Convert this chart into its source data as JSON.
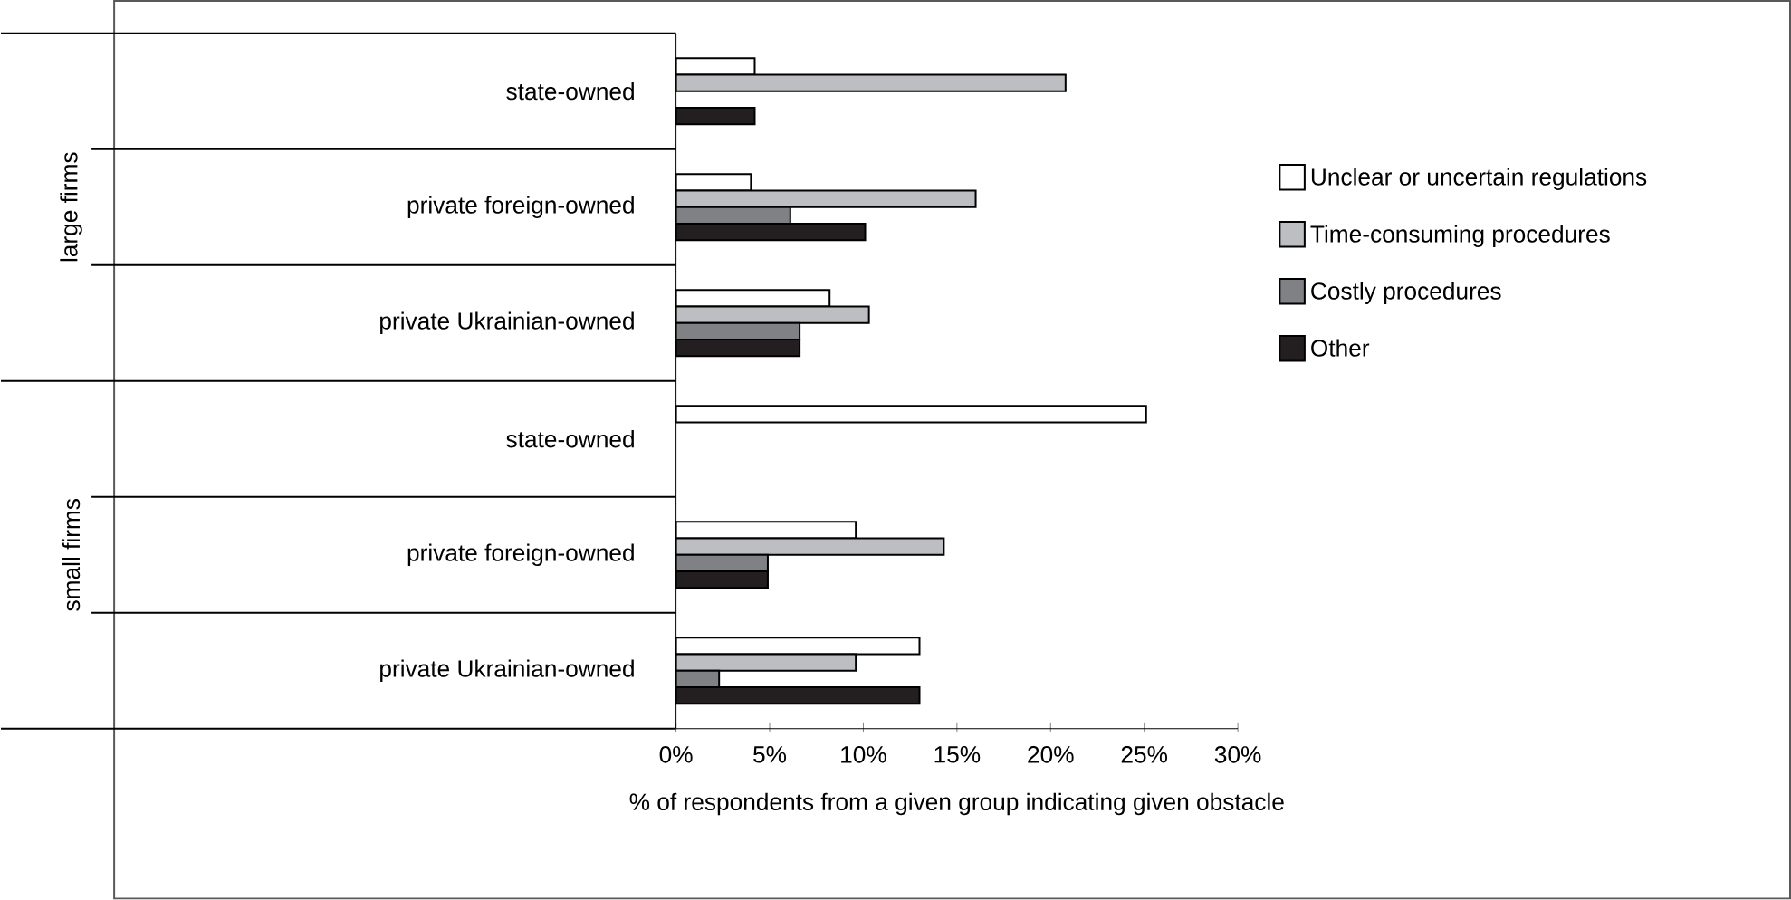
{
  "chart_data": {
    "type": "bar",
    "orientation": "horizontal",
    "xlabel": "% of respondents from a given group indicating given obstacle",
    "categories": [
      "state-owned",
      "private foreign-owned",
      "private Ukrainian-owned",
      "state-owned",
      "private foreign-owned",
      "private Ukrainian-owned"
    ],
    "annotations": [
      "large firms",
      "small firms"
    ],
    "series": [
      {
        "name": "Unclear or uncertain regulations",
        "color": "#ffffff",
        "values": [
          4.2,
          4.0,
          8.2,
          25.1,
          9.6,
          13.0
        ]
      },
      {
        "name": "Time-consuming procedures",
        "color": "#bdbec2",
        "values": [
          20.8,
          16.0,
          10.3,
          null,
          14.3,
          9.6
        ]
      },
      {
        "name": "Costly procedures",
        "color": "#808185",
        "values": [
          null,
          6.1,
          6.6,
          null,
          4.9,
          2.3
        ]
      },
      {
        "name": "Other",
        "color": "#231f20",
        "values": [
          4.2,
          10.1,
          6.6,
          null,
          4.9,
          13.0
        ]
      }
    ],
    "xlim": [
      0,
      30
    ],
    "xticks": [
      {
        "value": 0,
        "label": "0%"
      },
      {
        "value": 5,
        "label": "5%"
      },
      {
        "value": 10,
        "label": "10%"
      },
      {
        "value": 15,
        "label": "15%"
      },
      {
        "value": 20,
        "label": "20%"
      },
      {
        "value": 25,
        "label": "25%"
      },
      {
        "value": 30,
        "label": "30%"
      }
    ],
    "legend": "right",
    "grid": false
  }
}
